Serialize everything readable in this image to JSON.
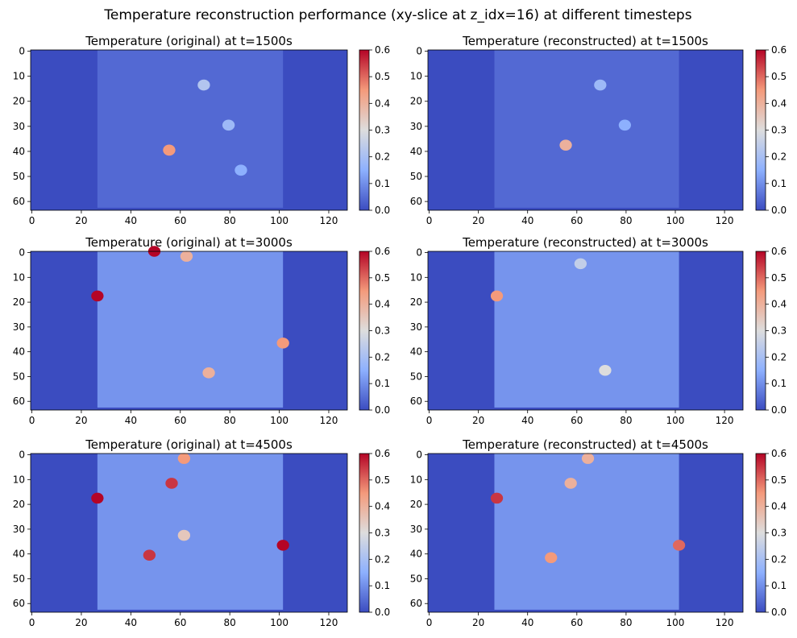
{
  "figure": {
    "suptitle": "Temperature reconstruction performance (xy-slice at z_idx=16) at different timesteps"
  },
  "colors": {
    "low": "#3b4cc0",
    "mid": "#dddddd",
    "high": "#b40426"
  },
  "chart_data": [
    {
      "type": "heatmap",
      "title": "Temperature (original) at t=1500s",
      "x_ticks": [
        "0",
        "20",
        "40",
        "60",
        "80",
        "100",
        "120"
      ],
      "y_ticks": [
        "0",
        "10",
        "20",
        "30",
        "40",
        "50",
        "60"
      ],
      "xlim": [
        0,
        128
      ],
      "ylim": [
        64,
        0
      ],
      "grid_shape": [
        64,
        128
      ],
      "colorbar": {
        "min": 0.0,
        "max": 0.6,
        "ticks": [
          "0.0",
          "0.1",
          "0.2",
          "0.3",
          "0.4",
          "0.5",
          "0.6"
        ],
        "cmap": "coolwarm"
      },
      "hotspots": [
        {
          "x": 56,
          "y": 40,
          "value": 0.45
        },
        {
          "x": 70,
          "y": 14,
          "value": 0.22
        },
        {
          "x": 80,
          "y": 30,
          "value": 0.18
        },
        {
          "x": 85,
          "y": 48,
          "value": 0.15
        }
      ]
    },
    {
      "type": "heatmap",
      "title": "Temperature (reconstructed) at t=1500s",
      "x_ticks": [
        "0",
        "20",
        "40",
        "60",
        "80",
        "100",
        "120"
      ],
      "y_ticks": [
        "0",
        "10",
        "20",
        "30",
        "40",
        "50",
        "60"
      ],
      "xlim": [
        0,
        128
      ],
      "ylim": [
        64,
        0
      ],
      "grid_shape": [
        64,
        128
      ],
      "colorbar": {
        "min": 0.0,
        "max": 0.6,
        "ticks": [
          "0.0",
          "0.1",
          "0.2",
          "0.3",
          "0.4",
          "0.5",
          "0.6"
        ],
        "cmap": "coolwarm"
      },
      "hotspots": [
        {
          "x": 56,
          "y": 38,
          "value": 0.4
        },
        {
          "x": 70,
          "y": 14,
          "value": 0.18
        },
        {
          "x": 80,
          "y": 30,
          "value": 0.15
        }
      ]
    },
    {
      "type": "heatmap",
      "title": "Temperature (original) at t=3000s",
      "x_ticks": [
        "0",
        "20",
        "40",
        "60",
        "80",
        "100",
        "120"
      ],
      "y_ticks": [
        "0",
        "10",
        "20",
        "30",
        "40",
        "50",
        "60"
      ],
      "xlim": [
        0,
        128
      ],
      "ylim": [
        64,
        0
      ],
      "grid_shape": [
        64,
        128
      ],
      "colorbar": {
        "min": 0.0,
        "max": 0.6,
        "ticks": [
          "0.0",
          "0.1",
          "0.2",
          "0.3",
          "0.4",
          "0.5",
          "0.6"
        ],
        "cmap": "coolwarm"
      },
      "hotspots": [
        {
          "x": 50,
          "y": 0,
          "value": 0.6
        },
        {
          "x": 63,
          "y": 2,
          "value": 0.4
        },
        {
          "x": 72,
          "y": 49,
          "value": 0.4
        },
        {
          "x": 27,
          "y": 18,
          "value": 0.6
        },
        {
          "x": 102,
          "y": 37,
          "value": 0.45
        }
      ]
    },
    {
      "type": "heatmap",
      "title": "Temperature (reconstructed) at t=3000s",
      "x_ticks": [
        "0",
        "20",
        "40",
        "60",
        "80",
        "100",
        "120"
      ],
      "y_ticks": [
        "0",
        "10",
        "20",
        "30",
        "40",
        "50",
        "60"
      ],
      "xlim": [
        0,
        128
      ],
      "ylim": [
        64,
        0
      ],
      "grid_shape": [
        64,
        128
      ],
      "colorbar": {
        "min": 0.0,
        "max": 0.6,
        "ticks": [
          "0.0",
          "0.1",
          "0.2",
          "0.3",
          "0.4",
          "0.5",
          "0.6"
        ],
        "cmap": "coolwarm"
      },
      "hotspots": [
        {
          "x": 28,
          "y": 18,
          "value": 0.45
        },
        {
          "x": 72,
          "y": 48,
          "value": 0.3
        },
        {
          "x": 62,
          "y": 5,
          "value": 0.25
        }
      ]
    },
    {
      "type": "heatmap",
      "title": "Temperature (original) at t=4500s",
      "x_ticks": [
        "0",
        "20",
        "40",
        "60",
        "80",
        "100",
        "120"
      ],
      "y_ticks": [
        "0",
        "10",
        "20",
        "30",
        "40",
        "50",
        "60"
      ],
      "xlim": [
        0,
        128
      ],
      "ylim": [
        64,
        0
      ],
      "grid_shape": [
        64,
        128
      ],
      "colorbar": {
        "min": 0.0,
        "max": 0.6,
        "ticks": [
          "0.0",
          "0.1",
          "0.2",
          "0.3",
          "0.4",
          "0.5",
          "0.6"
        ],
        "cmap": "coolwarm"
      },
      "hotspots": [
        {
          "x": 62,
          "y": 2,
          "value": 0.45
        },
        {
          "x": 57,
          "y": 12,
          "value": 0.55
        },
        {
          "x": 48,
          "y": 41,
          "value": 0.55
        },
        {
          "x": 62,
          "y": 33,
          "value": 0.35
        },
        {
          "x": 27,
          "y": 18,
          "value": 0.6
        },
        {
          "x": 102,
          "y": 37,
          "value": 0.6
        }
      ]
    },
    {
      "type": "heatmap",
      "title": "Temperature (reconstructed) at t=4500s",
      "x_ticks": [
        "0",
        "20",
        "40",
        "60",
        "80",
        "100",
        "120"
      ],
      "y_ticks": [
        "0",
        "10",
        "20",
        "30",
        "40",
        "50",
        "60"
      ],
      "xlim": [
        0,
        128
      ],
      "ylim": [
        64,
        0
      ],
      "grid_shape": [
        64,
        128
      ],
      "colorbar": {
        "min": 0.0,
        "max": 0.6,
        "ticks": [
          "0.0",
          "0.1",
          "0.2",
          "0.3",
          "0.4",
          "0.5",
          "0.6"
        ],
        "cmap": "coolwarm"
      },
      "hotspots": [
        {
          "x": 65,
          "y": 2,
          "value": 0.4
        },
        {
          "x": 58,
          "y": 12,
          "value": 0.4
        },
        {
          "x": 50,
          "y": 42,
          "value": 0.45
        },
        {
          "x": 28,
          "y": 18,
          "value": 0.55
        },
        {
          "x": 102,
          "y": 37,
          "value": 0.5
        }
      ]
    }
  ]
}
